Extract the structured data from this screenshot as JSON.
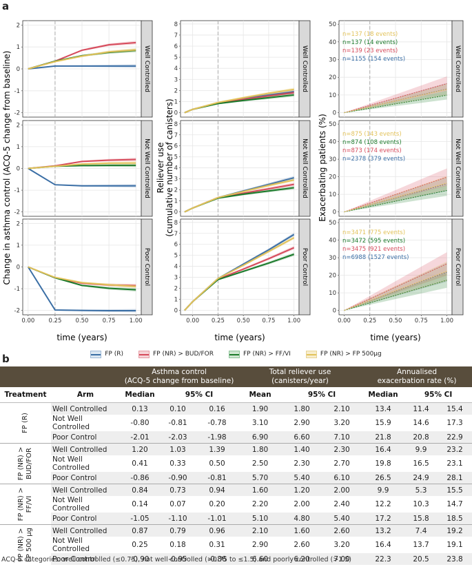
{
  "panel_a_label": "a",
  "panel_b_label": "b",
  "legend": [
    {
      "label": "FP (R)",
      "color": "#3a6ea5"
    },
    {
      "label": "FP (NR) > BUD/FOR",
      "color": "#d64a5b"
    },
    {
      "label": "FP (NR) > FF/VI",
      "color": "#1b7a2b"
    },
    {
      "label": "FP (NR) > FP 500µg",
      "color": "#e2c25a"
    }
  ],
  "chart_data": [
    {
      "type": "line",
      "column": "asthma control",
      "ylabel": "Change in asthma control (ACQ-5 change from baseline)",
      "xlabel": "time (years)",
      "xlim": [
        -0.05,
        1.05
      ],
      "xticks": [
        "0.00",
        "0.25",
        "0.50",
        "0.75",
        "1.00"
      ],
      "ylim": [
        -2.2,
        2.2
      ],
      "yticks": [
        -2,
        -1,
        0,
        1,
        2
      ],
      "vline_x": 0.25,
      "strips": [
        "Well Controlled",
        "Not Well Controlled",
        "Poor Control"
      ],
      "x": [
        0,
        0.25,
        0.5,
        0.75,
        1.0
      ],
      "rows": [
        {
          "series": [
            {
              "name": "FP (R)",
              "values": [
                0,
                0.13,
                0.13,
                0.13,
                0.13
              ]
            },
            {
              "name": "FP (NR) > BUD/FOR",
              "values": [
                0,
                0.35,
                0.85,
                1.1,
                1.2
              ]
            },
            {
              "name": "FP (NR) > FF/VI",
              "values": [
                0,
                0.35,
                0.6,
                0.75,
                0.84
              ]
            },
            {
              "name": "FP (NR) > FP 500µg",
              "values": [
                0,
                0.33,
                0.58,
                0.78,
                0.87
              ]
            }
          ]
        },
        {
          "series": [
            {
              "name": "FP (R)",
              "values": [
                0,
                -0.75,
                -0.8,
                -0.8,
                -0.8
              ]
            },
            {
              "name": "FP (NR) > BUD/FOR",
              "values": [
                0,
                0.12,
                0.32,
                0.38,
                0.41
              ]
            },
            {
              "name": "FP (NR) > FF/VI",
              "values": [
                0,
                0.1,
                0.13,
                0.14,
                0.14
              ]
            },
            {
              "name": "FP (NR) > FP 500µg",
              "values": [
                0,
                0.1,
                0.2,
                0.24,
                0.25
              ]
            }
          ]
        },
        {
          "series": [
            {
              "name": "FP (R)",
              "values": [
                0,
                -1.98,
                -2.0,
                -2.01,
                -2.01
              ]
            },
            {
              "name": "FP (NR) > BUD/FOR",
              "values": [
                0,
                -0.5,
                -0.75,
                -0.83,
                -0.86
              ]
            },
            {
              "name": "FP (NR) > FF/VI",
              "values": [
                0,
                -0.5,
                -0.85,
                -0.98,
                -1.05
              ]
            },
            {
              "name": "FP (NR) > FP 500µg",
              "values": [
                0,
                -0.48,
                -0.72,
                -0.82,
                -0.9
              ]
            }
          ]
        }
      ]
    },
    {
      "type": "line",
      "column": "reliever use",
      "ylabel": "Reliever use (cumulative number of canisters)",
      "xlabel": "time (years)",
      "xlim": [
        -0.12,
        1.05
      ],
      "xticks": [
        "0.00",
        "0.25",
        "0.50",
        "0.75",
        "1.00"
      ],
      "ylim": [
        -0.4,
        8.3
      ],
      "yticks": [
        0,
        1,
        2,
        3,
        4,
        5,
        6,
        7,
        8
      ],
      "vline_x": 0.25,
      "strips": [
        "Well Controlled",
        "Not Well Controlled",
        "Poor Control"
      ],
      "x": [
        -0.08,
        0,
        0.25,
        0.5,
        0.75,
        1.0
      ],
      "rows": [
        {
          "series": [
            {
              "name": "FP (R)",
              "values": [
                0,
                0.3,
                0.9,
                1.3,
                1.6,
                1.9
              ]
            },
            {
              "name": "FP (NR) > BUD/FOR",
              "values": [
                0,
                0.3,
                0.85,
                1.2,
                1.5,
                1.8
              ]
            },
            {
              "name": "FP (NR) > FF/VI",
              "values": [
                0,
                0.3,
                0.82,
                1.1,
                1.35,
                1.6
              ]
            },
            {
              "name": "FP (NR) > FP 500µg",
              "values": [
                0,
                0.3,
                0.92,
                1.35,
                1.75,
                2.1
              ]
            }
          ]
        },
        {
          "series": [
            {
              "name": "FP (R)",
              "values": [
                0,
                0.35,
                1.3,
                1.9,
                2.5,
                3.1
              ]
            },
            {
              "name": "FP (NR) > BUD/FOR",
              "values": [
                0,
                0.35,
                1.3,
                1.7,
                2.1,
                2.5
              ]
            },
            {
              "name": "FP (NR) > FF/VI",
              "values": [
                0,
                0.35,
                1.25,
                1.6,
                1.9,
                2.2
              ]
            },
            {
              "name": "FP (NR) > FP 500µg",
              "values": [
                0,
                0.35,
                1.3,
                1.85,
                2.4,
                2.9
              ]
            }
          ]
        },
        {
          "series": [
            {
              "name": "FP (R)",
              "values": [
                0,
                0.8,
                2.9,
                4.2,
                5.5,
                6.9
              ]
            },
            {
              "name": "FP (NR) > BUD/FOR",
              "values": [
                0,
                0.8,
                2.85,
                3.75,
                4.7,
                5.7
              ]
            },
            {
              "name": "FP (NR) > FF/VI",
              "values": [
                0,
                0.8,
                2.8,
                3.55,
                4.3,
                5.1
              ]
            },
            {
              "name": "FP (NR) > FP 500µg",
              "values": [
                0,
                0.8,
                2.9,
                4.1,
                5.35,
                6.6
              ]
            }
          ]
        }
      ]
    },
    {
      "type": "line",
      "column": "exacerbations",
      "ylabel": "Exacerbating patients (%)",
      "xlabel": "time (years)",
      "xlim": [
        -0.05,
        1.05
      ],
      "xticks": [
        "0.00",
        "0.25",
        "0.50",
        "0.75",
        "1.00"
      ],
      "ylim": [
        -2.5,
        52
      ],
      "yticks": [
        0,
        10,
        20,
        30,
        40,
        50
      ],
      "vline_x": 0.25,
      "strips": [
        "Well Controlled",
        "Not Well Controlled",
        "Poor Control"
      ],
      "x": [
        0,
        0.25,
        0.5,
        0.75,
        1.0
      ],
      "rows": [
        {
          "annotations": [
            "n=137 (18 events)",
            "n=137 (14 events)",
            "n=139 (23 events)",
            "n=1155 (154 events)"
          ],
          "series": [
            {
              "name": "FP (R)",
              "values": [
                0,
                3.4,
                6.7,
                10.1,
                13.4
              ]
            },
            {
              "name": "FP (NR) > BUD/FOR",
              "values": [
                0,
                4.1,
                8.2,
                12.3,
                16.4
              ]
            },
            {
              "name": "FP (NR) > FF/VI",
              "values": [
                0,
                2.5,
                5.0,
                7.4,
                9.9
              ]
            },
            {
              "name": "FP (NR) > FP 500µg",
              "values": [
                0,
                3.3,
                6.6,
                9.9,
                13.2
              ]
            }
          ]
        },
        {
          "annotations": [
            "n=875 (143 events)",
            "n=874 (108 events)",
            "n=873 (174 events)",
            "n=2378 (379 events)"
          ],
          "series": [
            {
              "name": "FP (R)",
              "values": [
                0,
                4.0,
                8.0,
                11.9,
                15.9
              ]
            },
            {
              "name": "FP (NR) > BUD/FOR",
              "values": [
                0,
                5.0,
                9.9,
                14.9,
                19.8
              ]
            },
            {
              "name": "FP (NR) > FF/VI",
              "values": [
                0,
                3.1,
                6.1,
                9.2,
                12.2
              ]
            },
            {
              "name": "FP (NR) > FP 500µg",
              "values": [
                0,
                4.1,
                8.2,
                12.3,
                16.4
              ]
            }
          ]
        },
        {
          "annotations": [
            "n=3471 (775 events)",
            "n=3472 (595 events)",
            "n=3475 (921 events)",
            "n=6988 (1527 events)"
          ],
          "series": [
            {
              "name": "FP (R)",
              "values": [
                0,
                5.5,
                10.9,
                16.4,
                21.8
              ]
            },
            {
              "name": "FP (NR) > BUD/FOR",
              "values": [
                0,
                6.6,
                13.3,
                19.9,
                26.5
              ]
            },
            {
              "name": "FP (NR) > FF/VI",
              "values": [
                0,
                4.3,
                8.6,
                12.9,
                17.2
              ]
            },
            {
              "name": "FP (NR) > FP 500µg",
              "values": [
                0,
                5.6,
                11.2,
                16.7,
                22.3
              ]
            }
          ]
        }
      ]
    }
  ],
  "table": {
    "group_headers": {
      "asthma": [
        "Asthma control",
        "(ACQ-5 change from baseline)"
      ],
      "reliever": [
        "Total reliever use",
        "(canisters/year)"
      ],
      "exacerbation": [
        "Annualised",
        "exacerbation rate (%)"
      ]
    },
    "columns": {
      "treatment": "Treatment",
      "arm": "Arm",
      "acq_median": "Median",
      "acq_ci": "95% CI",
      "rel_mean": "Mean",
      "rel_ci": "95% CI",
      "exa_median": "Median",
      "exa_ci": "95% CI"
    },
    "groups": [
      {
        "treatment": [
          "FP (R)"
        ],
        "rows": [
          [
            "Well Controlled",
            "0.13",
            "0.10",
            "0.16",
            "1.90",
            "1.80",
            "2.10",
            "13.4",
            "11.4",
            "15.4"
          ],
          [
            "Not Well Controlled",
            "-0.80",
            "-0.81",
            "-0.78",
            "3.10",
            "2.90",
            "3.20",
            "15.9",
            "14.6",
            "17.3"
          ],
          [
            "Poor Control",
            "-2.01",
            "-2.03",
            "-1.98",
            "6.90",
            "6.60",
            "7.10",
            "21.8",
            "20.8",
            "22.9"
          ]
        ]
      },
      {
        "treatment": [
          "FP (NR) >",
          "BUD/FOR"
        ],
        "rows": [
          [
            "Well Controlled",
            "1.20",
            "1.03",
            "1.39",
            "1.80",
            "1.40",
            "2.30",
            "16.4",
            "9.9",
            "23.2"
          ],
          [
            "Not Well Controlled",
            "0.41",
            "0.33",
            "0.50",
            "2.50",
            "2.30",
            "2.70",
            "19.8",
            "16.5",
            "23.1"
          ],
          [
            "Poor Control",
            "-0.86",
            "-0.90",
            "-0.81",
            "5.70",
            "5.40",
            "6.10",
            "26.5",
            "24.9",
            "28.1"
          ]
        ]
      },
      {
        "treatment": [
          "FP (NR) >",
          "FF/VI"
        ],
        "rows": [
          [
            "Well Controlled",
            "0.84",
            "0.73",
            "0.94",
            "1.60",
            "1.20",
            "2.00",
            "9.9",
            "5.3",
            "15.5"
          ],
          [
            "Not Well Controlled",
            "0.14",
            "0.07",
            "0.20",
            "2.20",
            "2.00",
            "2.40",
            "12.2",
            "10.3",
            "14.7"
          ],
          [
            "Poor Control",
            "-1.05",
            "-1.10",
            "-1.01",
            "5.10",
            "4.80",
            "5.40",
            "17.2",
            "15.8",
            "18.5"
          ]
        ]
      },
      {
        "treatment": [
          "FP (NR) >",
          "FP 500 µg"
        ],
        "rows": [
          [
            "Well Controlled",
            "0.87",
            "0.79",
            "0.96",
            "2.10",
            "1.60",
            "2.60",
            "13.2",
            "7.4",
            "19.2"
          ],
          [
            "Not Well Controlled",
            "0.25",
            "0.18",
            "0.31",
            "2.90",
            "2.60",
            "3.20",
            "16.4",
            "13.7",
            "19.1"
          ],
          [
            "Poor Control",
            "-0.90",
            "-0.95",
            "-0.86",
            "6.60",
            "6.20",
            "7.00",
            "22.3",
            "20.5",
            "23.8"
          ]
        ]
      }
    ]
  },
  "footnote": "ACQ-5 categories: well controlled (≤0.75), not well controlled (>0.75 to ≤1.5) and poorly controlled (>1.5)"
}
